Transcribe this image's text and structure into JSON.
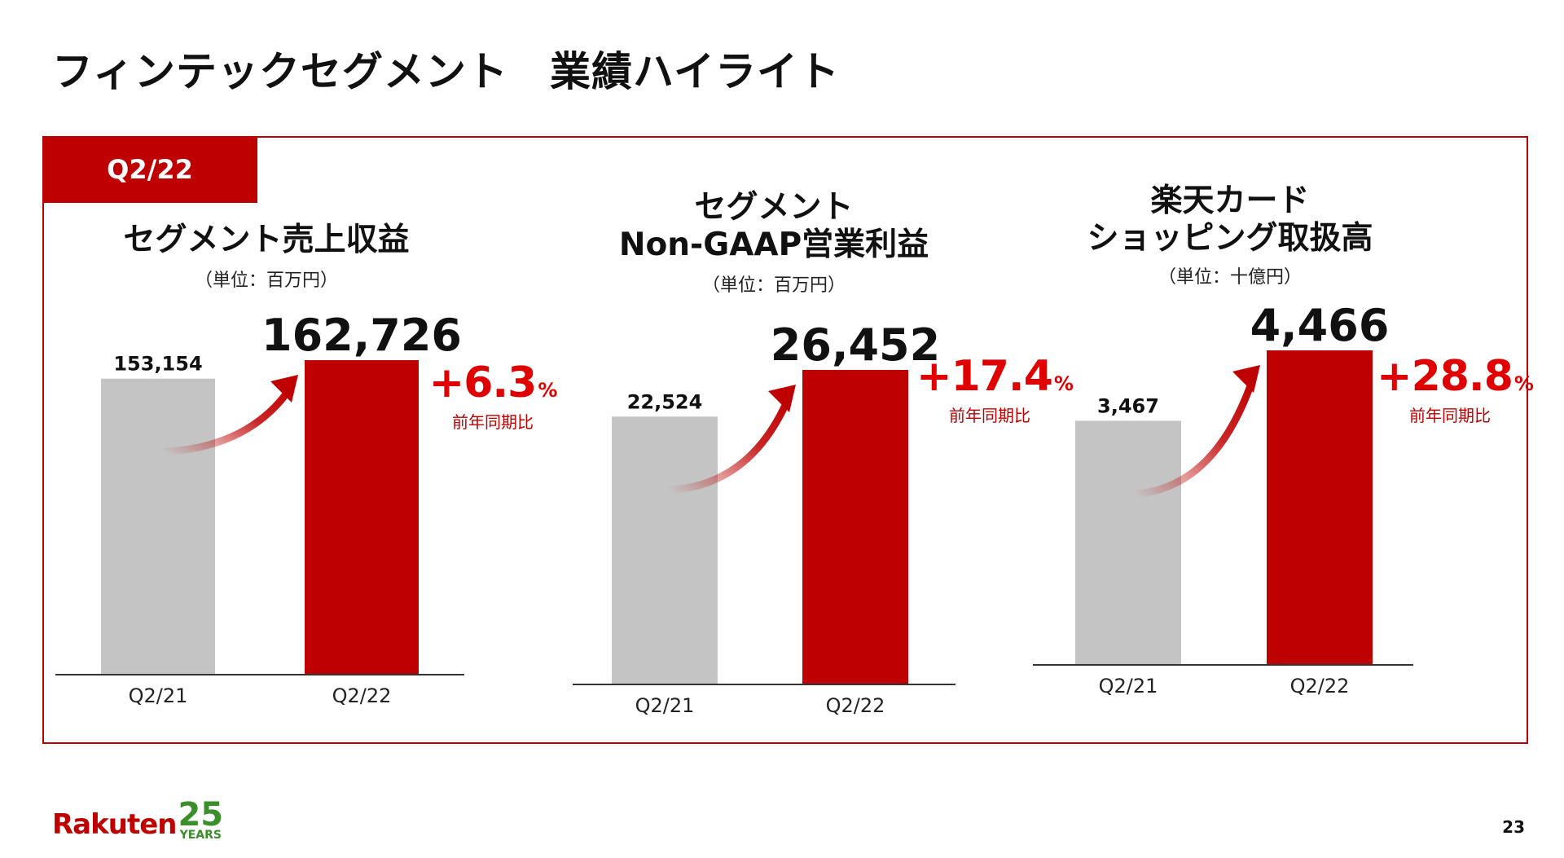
{
  "page": {
    "title": "フィンテックセグメント　業績ハイライト",
    "period_tag": "Q2/22",
    "page_number": "23",
    "logo": {
      "brand": "Rakuten",
      "number": "25",
      "years": "YEARS"
    }
  },
  "colors": {
    "accent": "#bf0000",
    "previous_bar": "#c4c4c4",
    "current_bar": "#bf0000",
    "growth_text": "#e00000",
    "logo_green": "#3a8f2a"
  },
  "growth_symbol": "%",
  "comparison_label": "前年同期比",
  "chart_data": [
    {
      "type": "bar",
      "title": [
        "セグメント売上収益"
      ],
      "unit": "（単位：百万円）",
      "categories": [
        "Q2/21",
        "Q2/22"
      ],
      "values": [
        153154,
        162726
      ],
      "value_labels": [
        "153,154",
        "162,726"
      ],
      "growth": "+6.3"
    },
    {
      "type": "bar",
      "title": [
        "セグメント",
        "Non-GAAP営業利益"
      ],
      "unit": "（単位：百万円）",
      "categories": [
        "Q2/21",
        "Q2/22"
      ],
      "values": [
        22524,
        26452
      ],
      "value_labels": [
        "22,524",
        "26,452"
      ],
      "growth": "+17.4"
    },
    {
      "type": "bar",
      "title": [
        "楽天カード",
        "ショッピング取扱高"
      ],
      "unit": "（単位：十億円）",
      "categories": [
        "Q2/21",
        "Q2/22"
      ],
      "values": [
        3467,
        4466
      ],
      "value_labels": [
        "3,467",
        "4,466"
      ],
      "growth": "+28.8"
    }
  ]
}
